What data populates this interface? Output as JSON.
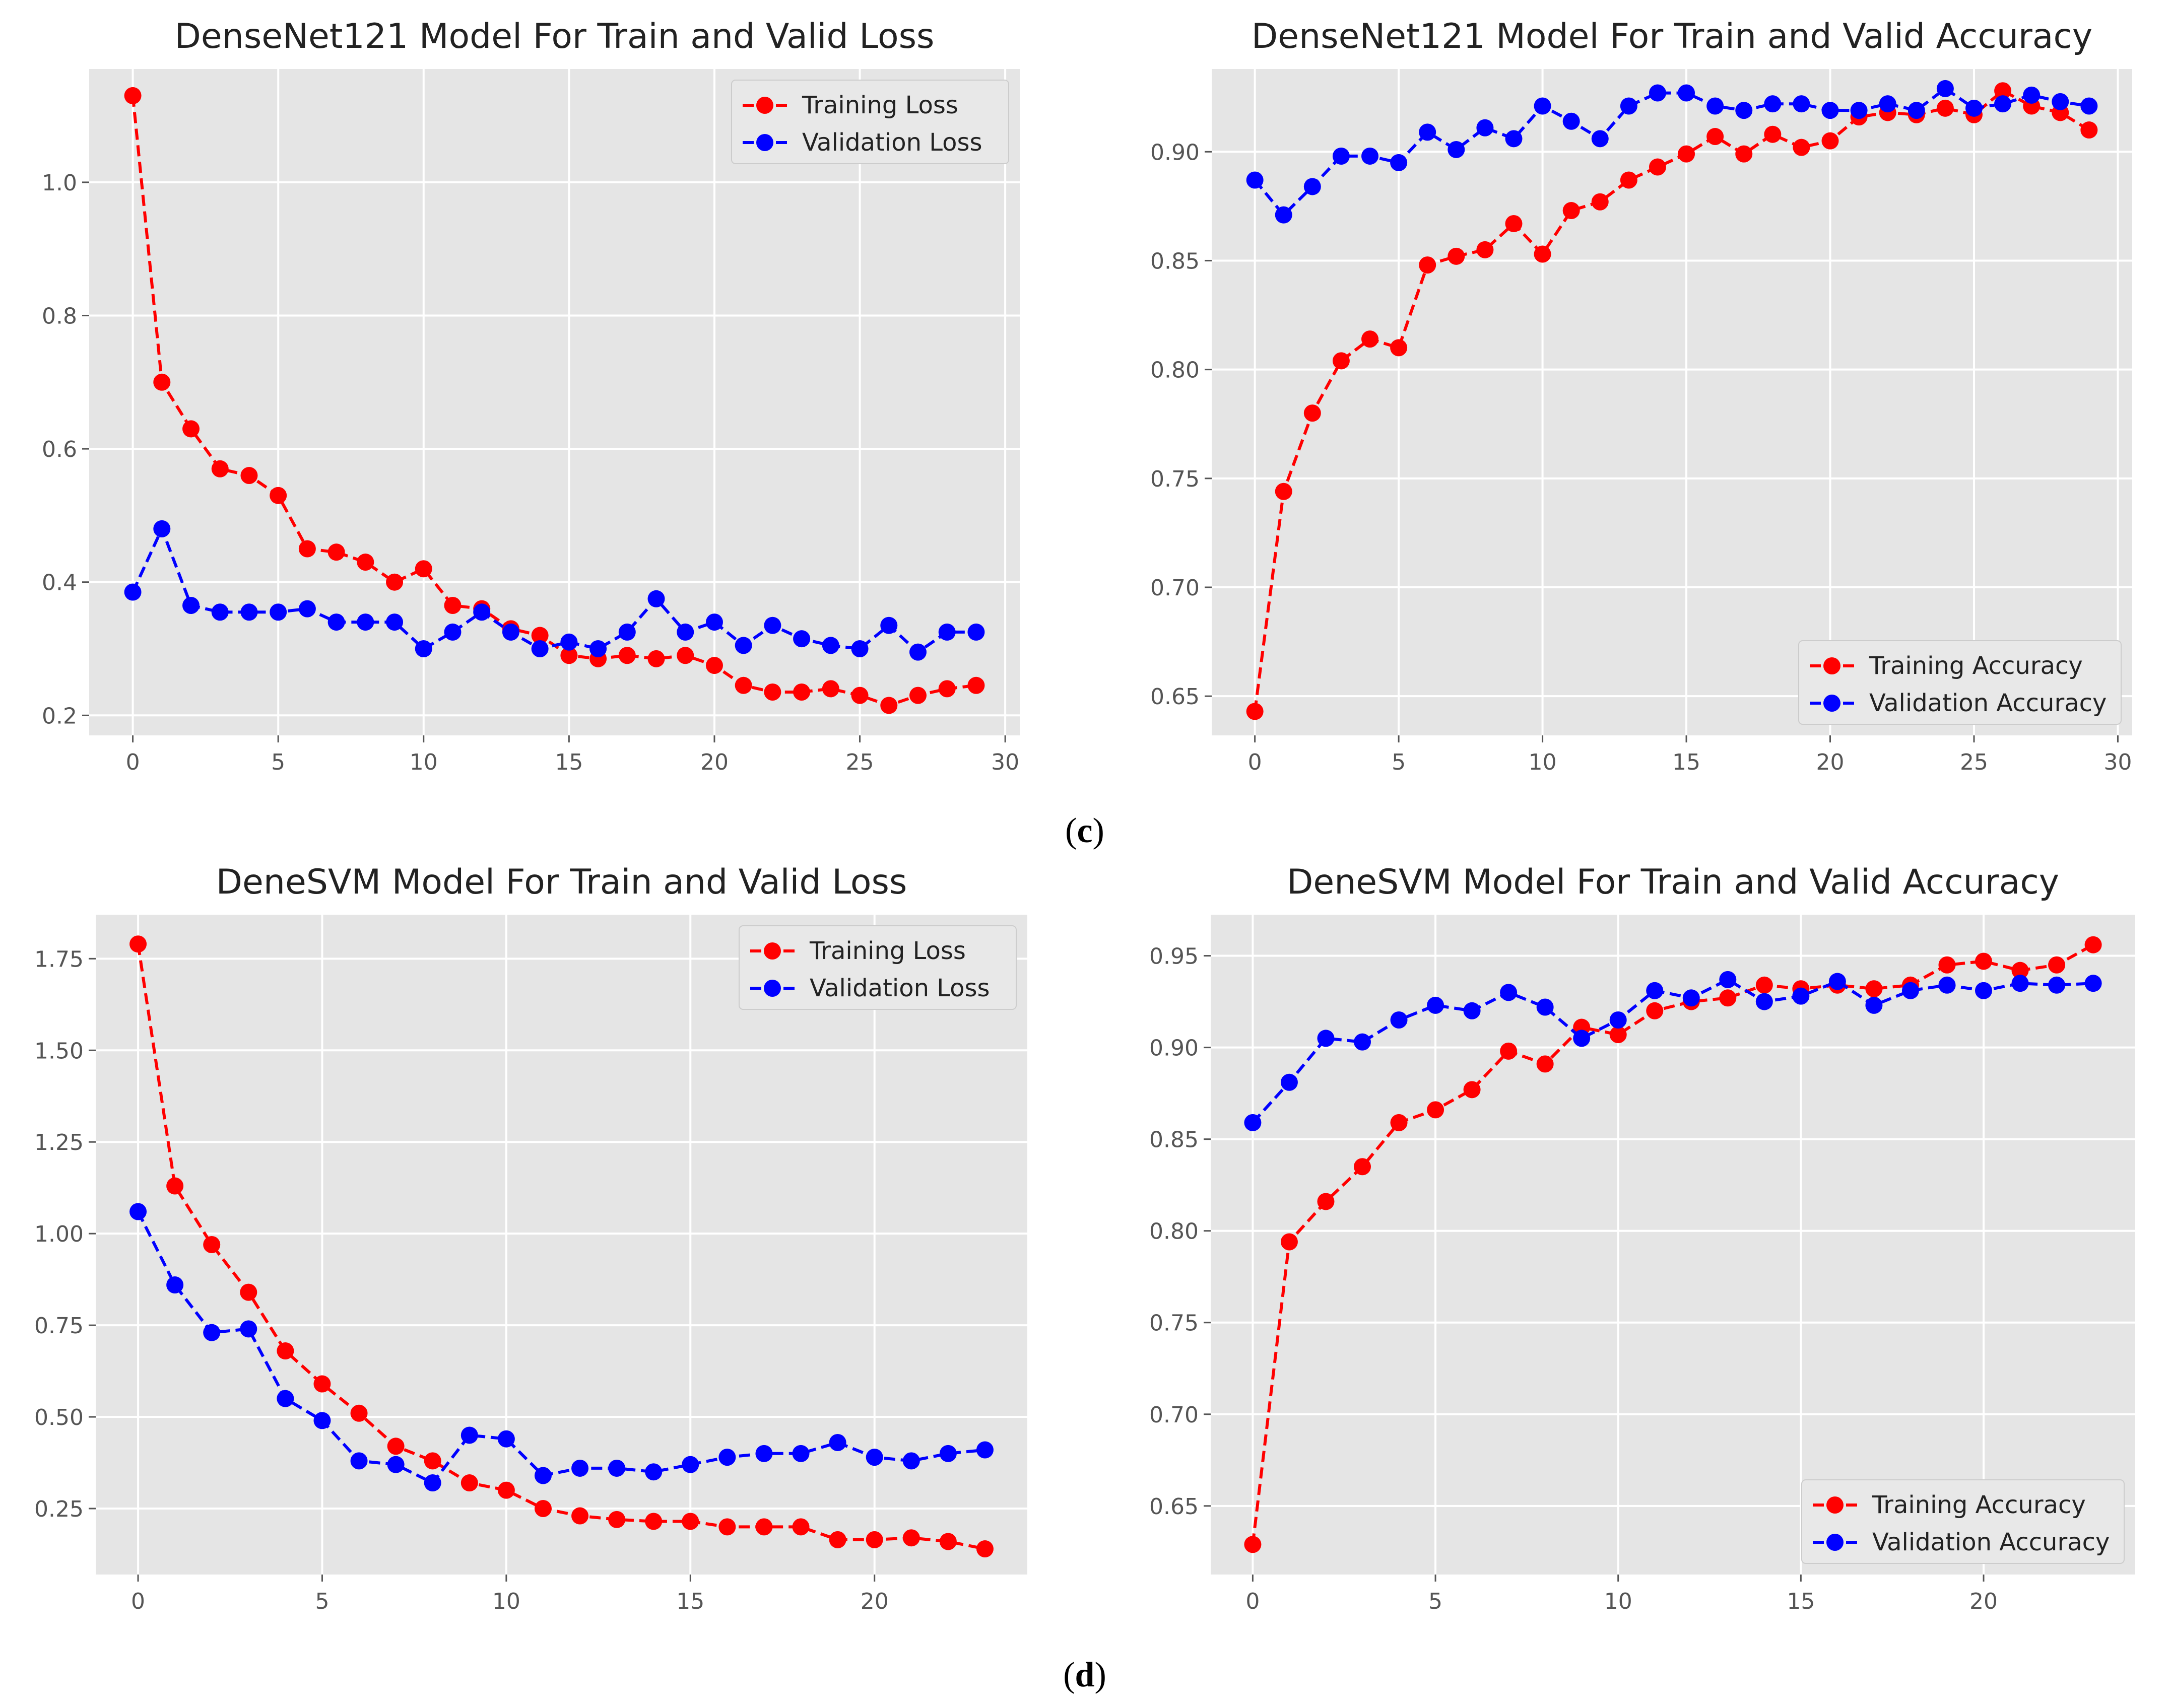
{
  "colors": {
    "panel_bg": "#e5e5e5",
    "grid": "#ffffff",
    "train": "#ff0000",
    "valid": "#0000ff",
    "tick_text": "#555555",
    "title_text": "#222222"
  },
  "captions": [
    {
      "open": "(",
      "letter": "c",
      "close": ")"
    },
    {
      "open": "(",
      "letter": "d",
      "close": ")"
    }
  ],
  "chart_data": [
    {
      "type": "line",
      "title": "DenseNet121 Model For Train and Valid Loss",
      "xlabel": "",
      "ylabel": "",
      "xlim": [
        -1.5,
        30.5
      ],
      "ylim": [
        0.17,
        1.17
      ],
      "xticks": [
        0,
        5,
        10,
        15,
        20,
        25,
        30
      ],
      "yticks": [
        0.2,
        0.4,
        0.6,
        0.8,
        1.0
      ],
      "ytick_labels": [
        "0.2",
        "0.4",
        "0.6",
        "0.8",
        "1.0"
      ],
      "grid": true,
      "legend_position": "top-right",
      "x": [
        0,
        1,
        2,
        3,
        4,
        5,
        6,
        7,
        8,
        9,
        10,
        11,
        12,
        13,
        14,
        15,
        16,
        17,
        18,
        19,
        20,
        21,
        22,
        23,
        24,
        25,
        26,
        27,
        28,
        29
      ],
      "series": [
        {
          "name": "Training Loss",
          "color": "#ff0000",
          "values": [
            1.13,
            0.7,
            0.63,
            0.57,
            0.56,
            0.53,
            0.45,
            0.445,
            0.43,
            0.4,
            0.42,
            0.365,
            0.36,
            0.33,
            0.32,
            0.29,
            0.285,
            0.29,
            0.285,
            0.29,
            0.275,
            0.245,
            0.235,
            0.235,
            0.24,
            0.23,
            0.215,
            0.23,
            0.24,
            0.245
          ]
        },
        {
          "name": "Validation Loss",
          "color": "#0000ff",
          "values": [
            0.385,
            0.48,
            0.365,
            0.355,
            0.355,
            0.355,
            0.36,
            0.34,
            0.34,
            0.34,
            0.3,
            0.325,
            0.355,
            0.325,
            0.3,
            0.31,
            0.3,
            0.325,
            0.375,
            0.325,
            0.34,
            0.305,
            0.335,
            0.315,
            0.305,
            0.3,
            0.335,
            0.295,
            0.325,
            0.325
          ]
        }
      ]
    },
    {
      "type": "line",
      "title": "DenseNet121 Model For Train and Valid Accuracy",
      "xlabel": "",
      "ylabel": "",
      "xlim": [
        -1.5,
        30.5
      ],
      "ylim": [
        0.632,
        0.938
      ],
      "xticks": [
        0,
        5,
        10,
        15,
        20,
        25,
        30
      ],
      "yticks": [
        0.65,
        0.7,
        0.75,
        0.8,
        0.85,
        0.9
      ],
      "ytick_labels": [
        "0.65",
        "0.70",
        "0.75",
        "0.80",
        "0.85",
        "0.90"
      ],
      "grid": true,
      "legend_position": "bottom-right",
      "x": [
        0,
        1,
        2,
        3,
        4,
        5,
        6,
        7,
        8,
        9,
        10,
        11,
        12,
        13,
        14,
        15,
        16,
        17,
        18,
        19,
        20,
        21,
        22,
        23,
        24,
        25,
        26,
        27,
        28,
        29
      ],
      "series": [
        {
          "name": "Training Accuracy",
          "color": "#ff0000",
          "values": [
            0.643,
            0.744,
            0.78,
            0.804,
            0.814,
            0.81,
            0.848,
            0.852,
            0.855,
            0.867,
            0.853,
            0.873,
            0.877,
            0.887,
            0.893,
            0.899,
            0.907,
            0.899,
            0.908,
            0.902,
            0.905,
            0.916,
            0.918,
            0.917,
            0.92,
            0.917,
            0.928,
            0.921,
            0.918,
            0.91
          ]
        },
        {
          "name": "Validation Accuracy",
          "color": "#0000ff",
          "values": [
            0.887,
            0.871,
            0.884,
            0.898,
            0.898,
            0.895,
            0.909,
            0.901,
            0.911,
            0.906,
            0.921,
            0.914,
            0.906,
            0.921,
            0.927,
            0.927,
            0.921,
            0.919,
            0.922,
            0.922,
            0.919,
            0.919,
            0.922,
            0.919,
            0.929,
            0.92,
            0.922,
            0.926,
            0.923,
            0.921
          ]
        }
      ]
    },
    {
      "type": "line",
      "title": "DeneSVM Model For Train and Valid Loss",
      "xlabel": "",
      "ylabel": "",
      "xlim": [
        -1.15,
        24.15
      ],
      "ylim": [
        0.07,
        1.87
      ],
      "xticks": [
        0,
        5,
        10,
        15,
        20
      ],
      "yticks": [
        0.25,
        0.5,
        0.75,
        1.0,
        1.25,
        1.5,
        1.75
      ],
      "ytick_labels": [
        "0.25",
        "0.50",
        "0.75",
        "1.00",
        "1.25",
        "1.50",
        "1.75"
      ],
      "grid": true,
      "legend_position": "top-right",
      "x": [
        0,
        1,
        2,
        3,
        4,
        5,
        6,
        7,
        8,
        9,
        10,
        11,
        12,
        13,
        14,
        15,
        16,
        17,
        18,
        19,
        20,
        21,
        22,
        23
      ],
      "series": [
        {
          "name": "Training Loss",
          "color": "#ff0000",
          "values": [
            1.79,
            1.13,
            0.97,
            0.84,
            0.68,
            0.59,
            0.51,
            0.42,
            0.38,
            0.32,
            0.3,
            0.25,
            0.23,
            0.22,
            0.215,
            0.215,
            0.2,
            0.2,
            0.2,
            0.165,
            0.165,
            0.17,
            0.16,
            0.14
          ]
        },
        {
          "name": "Validation Loss",
          "color": "#0000ff",
          "values": [
            1.06,
            0.86,
            0.73,
            0.74,
            0.55,
            0.49,
            0.38,
            0.37,
            0.32,
            0.45,
            0.44,
            0.34,
            0.36,
            0.36,
            0.35,
            0.37,
            0.39,
            0.4,
            0.4,
            0.43,
            0.39,
            0.38,
            0.4,
            0.41
          ]
        }
      ]
    },
    {
      "type": "line",
      "title": "DeneSVM Model For Train and Valid Accuracy",
      "xlabel": "",
      "ylabel": "",
      "xlim": [
        -1.15,
        24.15
      ],
      "ylim": [
        0.6126,
        0.9724
      ],
      "xticks": [
        0,
        5,
        10,
        15,
        20
      ],
      "yticks": [
        0.65,
        0.7,
        0.75,
        0.8,
        0.85,
        0.9,
        0.95
      ],
      "ytick_labels": [
        "0.65",
        "0.70",
        "0.75",
        "0.80",
        "0.85",
        "0.90",
        "0.95"
      ],
      "grid": true,
      "legend_position": "bottom-right",
      "x": [
        0,
        1,
        2,
        3,
        4,
        5,
        6,
        7,
        8,
        9,
        10,
        11,
        12,
        13,
        14,
        15,
        16,
        17,
        18,
        19,
        20,
        21,
        22,
        23
      ],
      "series": [
        {
          "name": "Training Accuracy",
          "color": "#ff0000",
          "values": [
            0.629,
            0.794,
            0.816,
            0.835,
            0.859,
            0.866,
            0.877,
            0.898,
            0.891,
            0.911,
            0.907,
            0.92,
            0.925,
            0.927,
            0.934,
            0.932,
            0.934,
            0.932,
            0.934,
            0.945,
            0.947,
            0.942,
            0.945,
            0.956
          ]
        },
        {
          "name": "Validation Accuracy",
          "color": "#0000ff",
          "values": [
            0.859,
            0.881,
            0.905,
            0.903,
            0.915,
            0.923,
            0.92,
            0.93,
            0.922,
            0.905,
            0.915,
            0.931,
            0.927,
            0.937,
            0.925,
            0.928,
            0.936,
            0.923,
            0.931,
            0.934,
            0.931,
            0.935,
            0.934,
            0.935
          ]
        }
      ]
    }
  ]
}
